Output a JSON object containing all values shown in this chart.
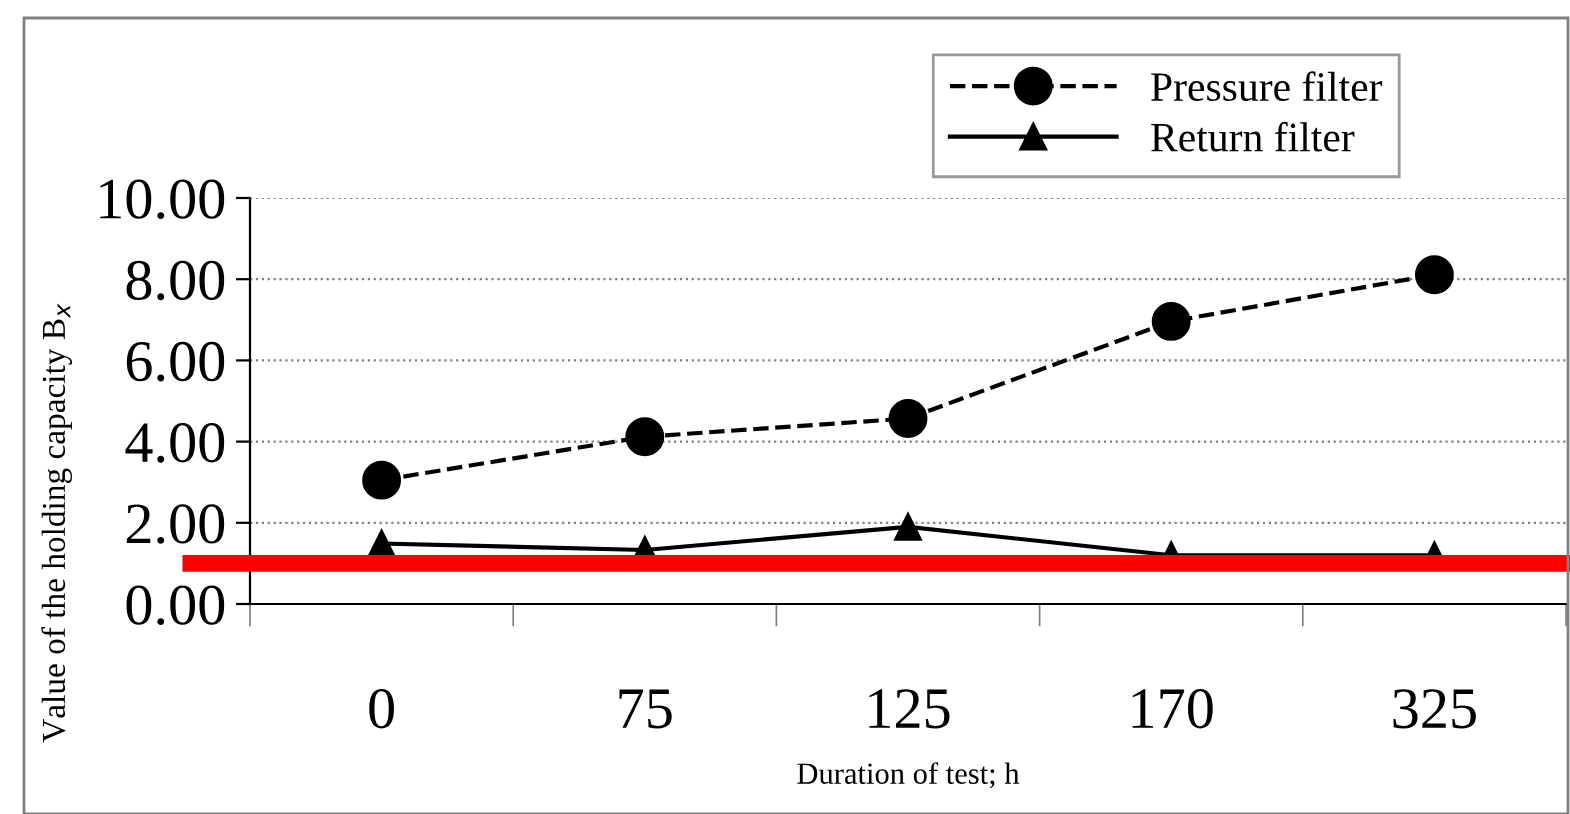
{
  "chart_data": {
    "type": "line",
    "xlabel": "Duration of test; h",
    "ylabel": "Value of the holding capacity B$_{x}$",
    "categories": [
      "0",
      "75",
      "125",
      "170",
      "325"
    ],
    "series": [
      {
        "name": "Pressure filter",
        "color": "#000000",
        "values": [
          3.05,
          4.12,
          4.57,
          6.96,
          8.11
        ],
        "marker": "circle",
        "line_style": "dashed"
      },
      {
        "name": "Return filter",
        "color": "#000000",
        "values": [
          1.49,
          1.33,
          1.9,
          1.2,
          1.2
        ],
        "marker": "triangle",
        "line_style": "solid"
      }
    ],
    "ylim": [
      0,
      10
    ],
    "yticks": [
      {
        "value": 0,
        "label": "0.00"
      },
      {
        "value": 2,
        "label": "2.00"
      },
      {
        "value": 4,
        "label": "4.00"
      },
      {
        "value": 6,
        "label": "6.00"
      },
      {
        "value": 8,
        "label": "8.00"
      },
      {
        "value": 10,
        "label": "10.00"
      }
    ],
    "ref_lines": [
      {
        "axis": "y",
        "value": 1.0,
        "color": "#ff0000",
        "line_style": "solid"
      }
    ],
    "grid": "y",
    "legend": "top right"
  }
}
